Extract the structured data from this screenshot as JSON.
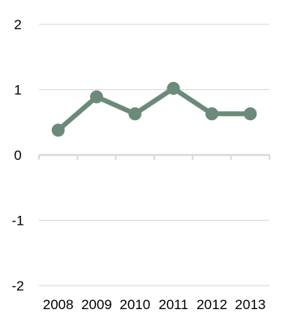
{
  "chart_data": {
    "type": "line",
    "title": "",
    "xlabel": "",
    "ylabel": "",
    "categories": [
      "2008",
      "2009",
      "2010",
      "2011",
      "2012",
      "2013"
    ],
    "series": [
      {
        "values": [
          0.38,
          0.89,
          0.63,
          1.02,
          0.63,
          0.63
        ]
      }
    ],
    "ylim": [
      -2,
      2
    ],
    "yticks": [
      "2",
      "1",
      "0",
      "-1",
      "-2"
    ],
    "grid": true,
    "legend": "none",
    "colors": {
      "series": "#6b8a7a",
      "grid": "#d9d9d9"
    }
  }
}
